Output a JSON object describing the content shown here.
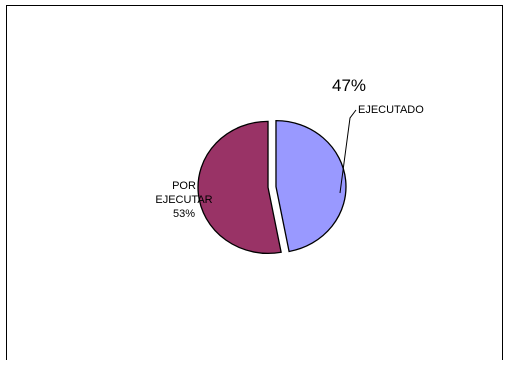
{
  "chart_data": {
    "type": "pie",
    "title": "",
    "legend": "none",
    "slices": [
      {
        "label": "EJECUTADO",
        "value": 47,
        "percent_label": "47%",
        "color": "#9999ff",
        "exploded": true
      },
      {
        "label": "POR EJECUTAR",
        "label_lines": [
          "POR",
          "EJECUTAR"
        ],
        "value": 53,
        "percent_label": "53%",
        "color": "#993366",
        "exploded": true
      }
    ]
  }
}
